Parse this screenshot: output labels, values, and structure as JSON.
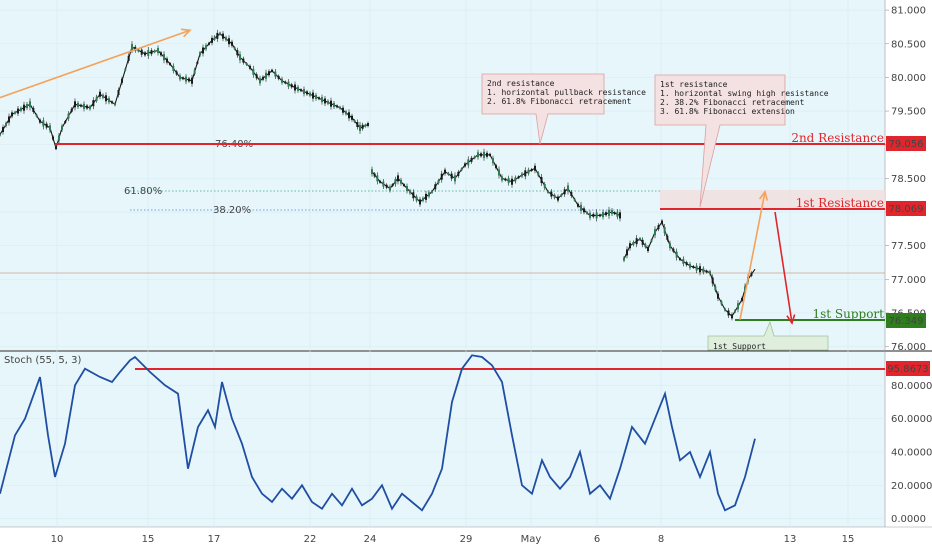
{
  "chart_data": {
    "type": "candlestick",
    "price_pane": {
      "ylim": [
        75.95,
        81.15
      ],
      "y_ticks": [
        "81.000",
        "80.500",
        "80.000",
        "79.500",
        "79.000",
        "78.500",
        "78.000",
        "77.500",
        "77.000",
        "76.500",
        "76.000"
      ],
      "levels": [
        {
          "name": "2nd Resistance",
          "value": "79.056",
          "color": "#e0262c"
        },
        {
          "name": "1st Resistance",
          "value": "78.069",
          "color": "#e0262c"
        },
        {
          "name": "1st Support",
          "value": "76.349",
          "color": "#2e7d1e"
        }
      ],
      "fib_labels": [
        {
          "label": "61.80%",
          "value": 78.32
        },
        {
          "label": "38.20%",
          "value": 78.06
        },
        {
          "label": "76.40%",
          "value": 79.0
        }
      ],
      "notes": {
        "second": {
          "lines": [
            "2nd resistance",
            "1. horizontal pullback resistance",
            "2. 61.8% Fibonacci retracement"
          ]
        },
        "first": {
          "lines": [
            "1st resistance",
            "1. horizontal swing high resistance",
            "2. 38.2% Fibonacci retracement",
            "3. 61.8% Fibonacci extension"
          ]
        },
        "support": {
          "lines": [
            "1st Support"
          ]
        }
      },
      "price_path": [
        [
          0,
          79.15
        ],
        [
          12,
          79.45
        ],
        [
          30,
          79.6
        ],
        [
          40,
          79.35
        ],
        [
          50,
          79.25
        ],
        [
          56,
          78.95
        ],
        [
          62,
          79.25
        ],
        [
          75,
          79.6
        ],
        [
          90,
          79.55
        ],
        [
          100,
          79.75
        ],
        [
          115,
          79.6
        ],
        [
          122,
          79.95
        ],
        [
          132,
          80.45
        ],
        [
          145,
          80.35
        ],
        [
          158,
          80.4
        ],
        [
          170,
          80.2
        ],
        [
          180,
          80.0
        ],
        [
          192,
          79.95
        ],
        [
          200,
          80.35
        ],
        [
          212,
          80.55
        ],
        [
          220,
          80.65
        ],
        [
          232,
          80.5
        ],
        [
          240,
          80.3
        ],
        [
          250,
          80.15
        ],
        [
          260,
          79.95
        ],
        [
          272,
          80.1
        ],
        [
          282,
          79.95
        ],
        [
          295,
          79.85
        ],
        [
          310,
          79.75
        ],
        [
          325,
          79.65
        ],
        [
          340,
          79.55
        ],
        [
          352,
          79.4
        ],
        [
          360,
          79.25
        ],
        [
          368,
          79.3
        ],
        [
          372,
          78.6
        ],
        [
          380,
          78.45
        ],
        [
          390,
          78.35
        ],
        [
          398,
          78.5
        ],
        [
          410,
          78.3
        ],
        [
          420,
          78.15
        ],
        [
          432,
          78.3
        ],
        [
          445,
          78.6
        ],
        [
          455,
          78.5
        ],
        [
          465,
          78.7
        ],
        [
          478,
          78.85
        ],
        [
          490,
          78.85
        ],
        [
          502,
          78.5
        ],
        [
          512,
          78.45
        ],
        [
          522,
          78.55
        ],
        [
          535,
          78.65
        ],
        [
          548,
          78.3
        ],
        [
          558,
          78.2
        ],
        [
          568,
          78.35
        ],
        [
          578,
          78.1
        ],
        [
          590,
          77.95
        ],
        [
          600,
          77.95
        ],
        [
          612,
          78.0
        ],
        [
          620,
          77.95
        ],
        [
          624,
          77.3
        ],
        [
          630,
          77.5
        ],
        [
          640,
          77.6
        ],
        [
          648,
          77.45
        ],
        [
          655,
          77.7
        ],
        [
          662,
          77.85
        ],
        [
          670,
          77.5
        ],
        [
          680,
          77.3
        ],
        [
          690,
          77.2
        ],
        [
          700,
          77.15
        ],
        [
          710,
          77.1
        ],
        [
          718,
          76.75
        ],
        [
          725,
          76.55
        ],
        [
          732,
          76.45
        ],
        [
          738,
          76.6
        ],
        [
          742,
          76.7
        ],
        [
          748,
          77.0
        ],
        [
          755,
          77.15
        ]
      ],
      "forecast": [
        {
          "color": "#f5a25a",
          "points": [
            [
              0,
              79.7
            ],
            [
              190,
              80.7
            ]
          ]
        },
        {
          "color": "#f5a25a",
          "points": [
            [
              740,
              76.4
            ],
            [
              765,
              78.3
            ]
          ]
        },
        {
          "color": "#e0262c",
          "points": [
            [
              775,
              78.0
            ],
            [
              792,
              76.35
            ]
          ]
        }
      ]
    },
    "stoch_pane": {
      "title": "Stoch (55, 5, 3)",
      "ylim": [
        -5,
        100
      ],
      "y_ticks": [
        "80.0000",
        "60.0000",
        "40.0000",
        "20.0000",
        "0.0000"
      ],
      "level": {
        "value": "95.8673",
        "color": "#e0262c"
      },
      "series": [
        [
          0,
          15
        ],
        [
          15,
          50
        ],
        [
          25,
          60
        ],
        [
          40,
          85
        ],
        [
          48,
          50
        ],
        [
          55,
          25
        ],
        [
          65,
          45
        ],
        [
          75,
          80
        ],
        [
          85,
          90
        ],
        [
          100,
          85
        ],
        [
          112,
          82
        ],
        [
          120,
          88
        ],
        [
          130,
          95
        ],
        [
          135,
          97
        ],
        [
          150,
          88
        ],
        [
          165,
          80
        ],
        [
          178,
          75
        ],
        [
          188,
          30
        ],
        [
          198,
          55
        ],
        [
          208,
          65
        ],
        [
          215,
          55
        ],
        [
          222,
          82
        ],
        [
          232,
          60
        ],
        [
          242,
          45
        ],
        [
          252,
          25
        ],
        [
          262,
          15
        ],
        [
          272,
          10
        ],
        [
          282,
          18
        ],
        [
          292,
          12
        ],
        [
          302,
          20
        ],
        [
          312,
          10
        ],
        [
          322,
          6
        ],
        [
          332,
          15
        ],
        [
          342,
          8
        ],
        [
          352,
          18
        ],
        [
          362,
          8
        ],
        [
          372,
          12
        ],
        [
          382,
          20
        ],
        [
          392,
          6
        ],
        [
          402,
          15
        ],
        [
          412,
          10
        ],
        [
          422,
          5
        ],
        [
          432,
          15
        ],
        [
          442,
          30
        ],
        [
          452,
          70
        ],
        [
          462,
          90
        ],
        [
          472,
          98
        ],
        [
          482,
          97
        ],
        [
          492,
          92
        ],
        [
          502,
          82
        ],
        [
          512,
          50
        ],
        [
          522,
          20
        ],
        [
          532,
          15
        ],
        [
          542,
          35
        ],
        [
          550,
          25
        ],
        [
          560,
          18
        ],
        [
          570,
          25
        ],
        [
          580,
          40
        ],
        [
          590,
          15
        ],
        [
          600,
          20
        ],
        [
          610,
          12
        ],
        [
          620,
          30
        ],
        [
          632,
          55
        ],
        [
          645,
          45
        ],
        [
          655,
          60
        ],
        [
          665,
          75
        ],
        [
          672,
          55
        ],
        [
          680,
          35
        ],
        [
          690,
          40
        ],
        [
          700,
          25
        ],
        [
          710,
          40
        ],
        [
          718,
          15
        ],
        [
          725,
          5
        ],
        [
          735,
          8
        ],
        [
          745,
          25
        ],
        [
          755,
          48
        ]
      ]
    },
    "x_ticks": [
      "10",
      "15",
      "17",
      "22",
      "24",
      "29",
      "May",
      "6",
      "8",
      "13",
      "15"
    ]
  }
}
